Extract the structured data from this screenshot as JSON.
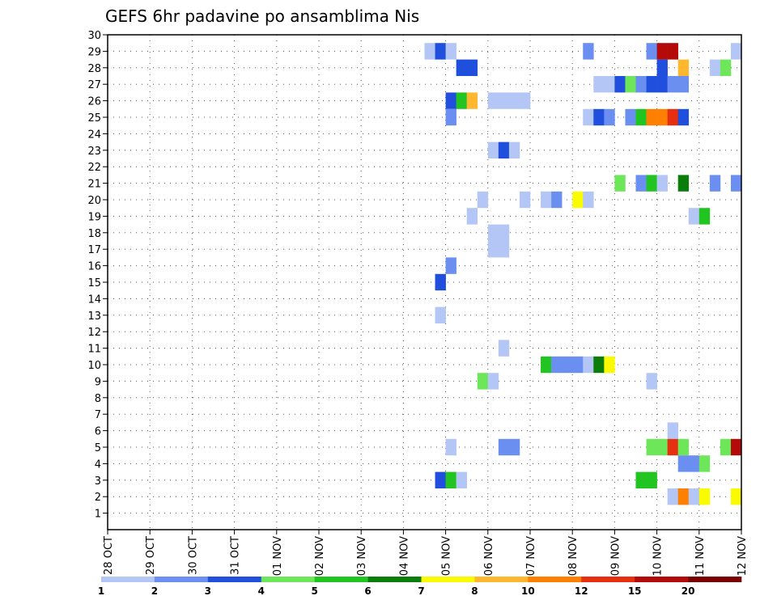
{
  "chart_data": {
    "type": "heatmap",
    "title": "GEFS 6hr padavine po ansamblima Nis",
    "xlabel": "",
    "ylabel": "",
    "x_tick_labels": [
      "28 OCT",
      "29 OCT",
      "30 OCT",
      "31 OCT",
      "01 NOV",
      "02 NOV",
      "03 NOV",
      "04 NOV",
      "05 NOV",
      "06 NOV",
      "07 NOV",
      "08 NOV",
      "09 NOV",
      "10 NOV",
      "11 NOV",
      "12 NOV"
    ],
    "xlim": [
      0,
      15
    ],
    "y_ticks": [
      1,
      2,
      3,
      4,
      5,
      6,
      7,
      8,
      9,
      10,
      11,
      12,
      13,
      14,
      15,
      16,
      17,
      18,
      19,
      20,
      21,
      22,
      23,
      24,
      25,
      26,
      27,
      28,
      29,
      30
    ],
    "ylim": [
      0,
      30
    ],
    "grid": true,
    "colorbar": {
      "placement": "bottom",
      "levels": [
        "1",
        "2",
        "3",
        "4",
        "5",
        "6",
        "7",
        "8",
        "10",
        "12",
        "15",
        "20",
        ""
      ],
      "colors": [
        "#b3c6f5",
        "#6a8ff0",
        "#1f4fdc",
        "#6ee65a",
        "#22c422",
        "#0a7d0a",
        "#fafa00",
        "#ffb730",
        "#ff7f00",
        "#e62e10",
        "#b40a0a",
        "#7a0000"
      ]
    },
    "cells": [
      {
        "m": 29,
        "x": [
          [
            7.5,
            "#b3c6f5"
          ],
          [
            7.75,
            "#1f4fdc"
          ],
          [
            8.0,
            "#b3c6f5"
          ],
          [
            11.25,
            "#6a8ff0"
          ],
          [
            12.75,
            "#6a8ff0"
          ],
          [
            13.0,
            "#b40a0a"
          ],
          [
            13.25,
            "#b40a0a"
          ],
          [
            14.75,
            "#b3c6f5"
          ]
        ]
      },
      {
        "m": 28,
        "x": [
          [
            8.25,
            "#1f4fdc"
          ],
          [
            8.5,
            "#1f4fdc"
          ],
          [
            13.0,
            "#1f4fdc"
          ],
          [
            13.5,
            "#ffb730"
          ],
          [
            14.25,
            "#b3c6f5"
          ],
          [
            14.5,
            "#6ee65a"
          ]
        ]
      },
      {
        "m": 27,
        "x": [
          [
            11.5,
            "#b3c6f5"
          ],
          [
            11.75,
            "#b3c6f5"
          ],
          [
            12.0,
            "#1f4fdc"
          ],
          [
            12.25,
            "#6ee65a"
          ],
          [
            12.5,
            "#6a8ff0"
          ],
          [
            12.75,
            "#1f4fdc"
          ],
          [
            13.0,
            "#1f4fdc"
          ],
          [
            13.25,
            "#6a8ff0"
          ],
          [
            13.5,
            "#6a8ff0"
          ]
        ]
      },
      {
        "m": 26,
        "x": [
          [
            8.0,
            "#1f4fdc"
          ],
          [
            8.25,
            "#22c422"
          ],
          [
            8.5,
            "#ffb730"
          ],
          [
            9.0,
            "#b3c6f5"
          ],
          [
            9.25,
            "#b3c6f5"
          ],
          [
            9.5,
            "#b3c6f5"
          ],
          [
            9.75,
            "#b3c6f5"
          ]
        ]
      },
      {
        "m": 25,
        "x": [
          [
            8.0,
            "#6a8ff0"
          ],
          [
            11.25,
            "#b3c6f5"
          ],
          [
            11.5,
            "#1f4fdc"
          ],
          [
            11.75,
            "#6a8ff0"
          ],
          [
            12.25,
            "#6a8ff0"
          ],
          [
            12.5,
            "#22c422"
          ],
          [
            12.75,
            "#ff7f00"
          ],
          [
            13.0,
            "#ff7f00"
          ],
          [
            13.25,
            "#e62e10"
          ],
          [
            13.5,
            "#1f4fdc"
          ]
        ]
      },
      {
        "m": 23,
        "x": [
          [
            9.0,
            "#b3c6f5"
          ],
          [
            9.25,
            "#1f4fdc"
          ],
          [
            9.5,
            "#b3c6f5"
          ]
        ]
      },
      {
        "m": 21,
        "x": [
          [
            12.0,
            "#6ee65a"
          ],
          [
            12.5,
            "#6a8ff0"
          ],
          [
            12.75,
            "#22c422"
          ],
          [
            13.0,
            "#b3c6f5"
          ],
          [
            13.5,
            "#0a7d0a"
          ],
          [
            14.25,
            "#6a8ff0"
          ],
          [
            14.75,
            "#6a8ff0"
          ]
        ]
      },
      {
        "m": 20,
        "x": [
          [
            8.75,
            "#b3c6f5"
          ],
          [
            9.75,
            "#b3c6f5"
          ],
          [
            10.25,
            "#b3c6f5"
          ],
          [
            10.5,
            "#6a8ff0"
          ],
          [
            11.0,
            "#fafa00"
          ],
          [
            11.25,
            "#b3c6f5"
          ]
        ]
      },
      {
        "m": 19,
        "x": [
          [
            8.5,
            "#b3c6f5"
          ],
          [
            13.75,
            "#b3c6f5"
          ],
          [
            14.0,
            "#22c422"
          ]
        ]
      },
      {
        "m": 18,
        "x": [
          [
            9.0,
            "#b3c6f5"
          ],
          [
            9.25,
            "#b3c6f5"
          ]
        ]
      },
      {
        "m": 17,
        "x": [
          [
            9.0,
            "#b3c6f5"
          ],
          [
            9.25,
            "#b3c6f5"
          ]
        ]
      },
      {
        "m": 16,
        "x": [
          [
            8.0,
            "#6a8ff0"
          ]
        ]
      },
      {
        "m": 15,
        "x": [
          [
            7.75,
            "#1f4fdc"
          ]
        ]
      },
      {
        "m": 13,
        "x": [
          [
            7.75,
            "#b3c6f5"
          ]
        ]
      },
      {
        "m": 11,
        "x": [
          [
            9.25,
            "#b3c6f5"
          ]
        ]
      },
      {
        "m": 10,
        "x": [
          [
            10.25,
            "#22c422"
          ],
          [
            10.5,
            "#6a8ff0"
          ],
          [
            10.75,
            "#6a8ff0"
          ],
          [
            11.0,
            "#6a8ff0"
          ],
          [
            11.25,
            "#b3c6f5"
          ],
          [
            11.5,
            "#0a7d0a"
          ],
          [
            11.75,
            "#fafa00"
          ]
        ]
      },
      {
        "m": 9,
        "x": [
          [
            8.75,
            "#6ee65a"
          ],
          [
            9.0,
            "#b3c6f5"
          ],
          [
            12.75,
            "#b3c6f5"
          ]
        ]
      },
      {
        "m": 6,
        "x": [
          [
            13.25,
            "#b3c6f5"
          ]
        ]
      },
      {
        "m": 5,
        "x": [
          [
            8.0,
            "#b3c6f5"
          ],
          [
            9.25,
            "#6a8ff0"
          ],
          [
            9.5,
            "#6a8ff0"
          ],
          [
            12.75,
            "#6ee65a"
          ],
          [
            13.0,
            "#6ee65a"
          ],
          [
            13.25,
            "#e62e10"
          ],
          [
            13.5,
            "#6ee65a"
          ],
          [
            14.5,
            "#6ee65a"
          ],
          [
            14.75,
            "#b40a0a"
          ]
        ]
      },
      {
        "m": 4,
        "x": [
          [
            13.5,
            "#6a8ff0"
          ],
          [
            13.75,
            "#6a8ff0"
          ],
          [
            14.0,
            "#6ee65a"
          ]
        ]
      },
      {
        "m": 3,
        "x": [
          [
            7.75,
            "#1f4fdc"
          ],
          [
            8.0,
            "#22c422"
          ],
          [
            8.25,
            "#b3c6f5"
          ],
          [
            12.5,
            "#22c422"
          ],
          [
            12.75,
            "#22c422"
          ]
        ]
      },
      {
        "m": 2,
        "x": [
          [
            13.25,
            "#b3c6f5"
          ],
          [
            13.5,
            "#ff7f00"
          ],
          [
            13.75,
            "#b3c6f5"
          ],
          [
            14.0,
            "#fafa00"
          ],
          [
            14.75,
            "#fafa00"
          ]
        ]
      }
    ]
  }
}
